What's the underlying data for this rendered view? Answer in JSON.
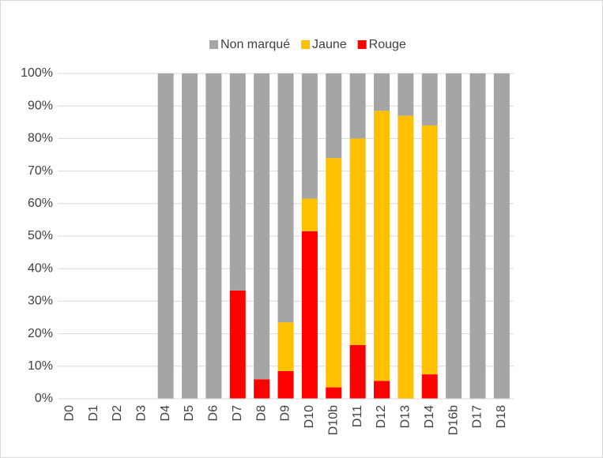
{
  "chart_data": {
    "type": "stacked_bar",
    "categories": [
      "D0",
      "D1",
      "D2",
      "D3",
      "D4",
      "D5",
      "D6",
      "D7",
      "D8",
      "D9",
      "D10",
      "D10b",
      "D11",
      "D12",
      "D13",
      "D14",
      "D16b",
      "D17",
      "D18"
    ],
    "series": [
      {
        "name": "Non marqué",
        "color": "#a5a5a5",
        "values": [
          0,
          0,
          0,
          0,
          100,
          100,
          100,
          66.7,
          94,
          76.5,
          38.5,
          26,
          20,
          11.5,
          13,
          16,
          100,
          100,
          100
        ]
      },
      {
        "name": "Jaune",
        "color": "#ffc000",
        "values": [
          0,
          0,
          0,
          0,
          0,
          0,
          0,
          0,
          0,
          15,
          10,
          70.5,
          63.5,
          83,
          87,
          76.5,
          0,
          0,
          0
        ]
      },
      {
        "name": "Rouge",
        "color": "#ff0000",
        "values": [
          0,
          0,
          0,
          0,
          0,
          0,
          0,
          33.3,
          6,
          8.5,
          51.5,
          3.5,
          16.5,
          5.5,
          0,
          7.5,
          0,
          0,
          0
        ]
      }
    ],
    "ylim": [
      0,
      100
    ],
    "yticks": [
      {
        "value": 0,
        "label": "0%"
      },
      {
        "value": 10,
        "label": "10%"
      },
      {
        "value": 20,
        "label": "20%"
      },
      {
        "value": 30,
        "label": "30%"
      },
      {
        "value": 40,
        "label": "40%"
      },
      {
        "value": 50,
        "label": "50%"
      },
      {
        "value": 60,
        "label": "60%"
      },
      {
        "value": 70,
        "label": "70%"
      },
      {
        "value": 80,
        "label": "80%"
      },
      {
        "value": 90,
        "label": "90%"
      },
      {
        "value": 100,
        "label": "100%"
      }
    ],
    "grid": true
  }
}
